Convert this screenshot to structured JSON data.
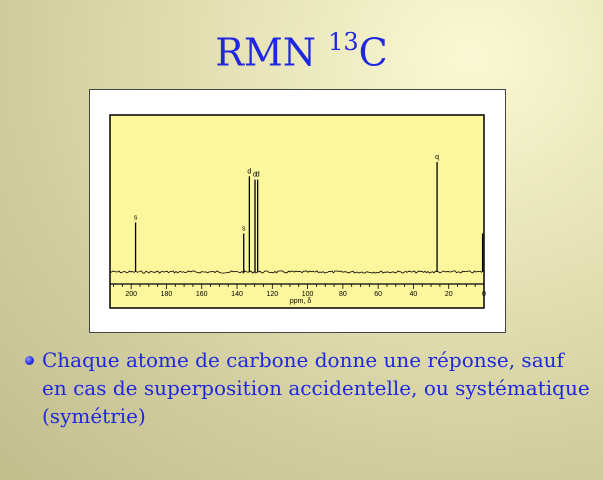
{
  "slide": {
    "title_main": "RMN ",
    "title_sup": "13",
    "title_end": "C",
    "bullet_text": "Chaque atome de carbone donne une réponse, sauf en cas de superposition accidentelle, ou systématique (symétrie)"
  },
  "chart_data": {
    "type": "line",
    "title": "",
    "xlabel": "ppm, δ",
    "ylabel": "",
    "xlim": [
      212,
      0
    ],
    "x_reversed": true,
    "x_ticks": [
      200,
      180,
      160,
      140,
      120,
      100,
      80,
      60,
      40,
      20,
      0
    ],
    "x_tick_labels": [
      "200",
      "180",
      "160",
      "140",
      "120",
      "100",
      "80",
      "60",
      "40",
      "20",
      "0"
    ],
    "grid": false,
    "background_color": "#fcf79c",
    "line_color": "#000000",
    "peaks": [
      {
        "x": 197.5,
        "height": 0.45,
        "label": "s"
      },
      {
        "x": 136.2,
        "height": 0.35,
        "label": "s"
      },
      {
        "x": 133.0,
        "height": 0.87,
        "label": "d"
      },
      {
        "x": 129.8,
        "height": 0.84,
        "label": "d"
      },
      {
        "x": 128.3,
        "height": 0.84,
        "label": "d"
      },
      {
        "x": 26.6,
        "height": 1.0,
        "label": "q"
      },
      {
        "x": 0.8,
        "height": 0.35,
        "label": ""
      }
    ]
  }
}
